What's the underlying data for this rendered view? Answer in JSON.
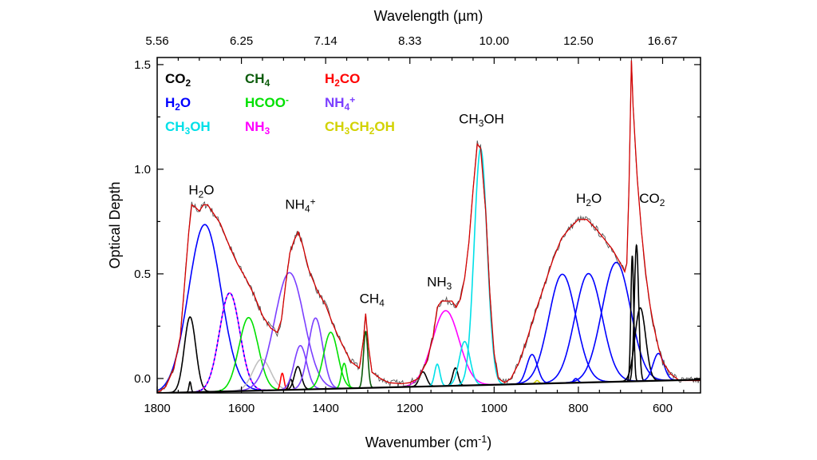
{
  "chart_data": {
    "type": "line",
    "xlabel": "Wavenumber (cm-1)",
    "xlabel_parts": [
      {
        "t": "Wavenumber (cm"
      },
      {
        "t": "-1",
        "sup": true
      },
      {
        "t": ")"
      }
    ],
    "ylabel": "Optical Depth",
    "top_xlabel": "Wavelength (µm)",
    "xlim": [
      1800,
      510
    ],
    "ylim": [
      -0.069,
      1.534
    ],
    "x_reversed": true,
    "grid": false,
    "legend_placement": "top-left",
    "x_ticks": [
      1800,
      1600,
      1400,
      1200,
      1000,
      800,
      600
    ],
    "x_tick_labels": [
      "1800",
      "1600",
      "1400",
      "1200",
      "1000",
      "800",
      "600"
    ],
    "top_ticks_wavenumber": [
      1800,
      1600,
      1400,
      1200,
      1000,
      800,
      600
    ],
    "top_tick_labels": [
      "5.56",
      "6.25",
      "7.14",
      "8.33",
      "10.00",
      "12.50",
      "16.67"
    ],
    "y_ticks": [
      0.0,
      0.5,
      1.0,
      1.5
    ],
    "y_tick_labels": [
      "0.0",
      "0.5",
      "1.0",
      "1.5"
    ],
    "colors": {
      "data": "#555555",
      "fit": "#d40000",
      "baseline": "#000000",
      "CO2": "#000000",
      "CH4": "#0b5c0b",
      "H2CO": "#ff0000",
      "H2O": "#0000ff",
      "HCOO-": "#00e000",
      "NH4+": "#7b3fff",
      "CH3OH": "#00e0e8",
      "NH3": "#ff00ff",
      "CH3CH2OH": "#d2d200",
      "unassigned": "#c0c0c0"
    },
    "legend": [
      {
        "species": "CO2",
        "parts": [
          {
            "t": "CO"
          },
          {
            "t": "2",
            "sub": true
          }
        ]
      },
      {
        "species": "H2O",
        "parts": [
          {
            "t": "H"
          },
          {
            "t": "2",
            "sub": true
          },
          {
            "t": "O"
          }
        ]
      },
      {
        "species": "CH3OH",
        "parts": [
          {
            "t": "CH"
          },
          {
            "t": "3",
            "sub": true
          },
          {
            "t": "OH"
          }
        ]
      },
      {
        "species": "CH4",
        "parts": [
          {
            "t": "CH"
          },
          {
            "t": "4",
            "sub": true
          }
        ]
      },
      {
        "species": "HCOO-",
        "parts": [
          {
            "t": "HCOO"
          },
          {
            "t": "-",
            "sup": true
          }
        ]
      },
      {
        "species": "NH3",
        "parts": [
          {
            "t": "NH"
          },
          {
            "t": "3",
            "sub": true
          }
        ]
      },
      {
        "species": "H2CO",
        "parts": [
          {
            "t": "H"
          },
          {
            "t": "2",
            "sub": true
          },
          {
            "t": "CO"
          }
        ]
      },
      {
        "species": "NH4+",
        "parts": [
          {
            "t": "NH"
          },
          {
            "t": "4",
            "sub": true
          },
          {
            "t": "+",
            "sup": true
          }
        ]
      },
      {
        "species": "CH3CH2OH",
        "parts": [
          {
            "t": "CH"
          },
          {
            "t": "3",
            "sub": true
          },
          {
            "t": "CH"
          },
          {
            "t": "2",
            "sub": true
          },
          {
            "t": "OH"
          }
        ]
      }
    ],
    "annotations": [
      {
        "x": 1695,
        "y": 0.88,
        "parts": [
          {
            "t": "H"
          },
          {
            "t": "2",
            "sub": true
          },
          {
            "t": "O"
          }
        ]
      },
      {
        "x": 1460,
        "y": 0.81,
        "parts": [
          {
            "t": "NH"
          },
          {
            "t": "4",
            "sub": true
          },
          {
            "t": "+",
            "sup": true
          }
        ]
      },
      {
        "x": 1290,
        "y": 0.36,
        "parts": [
          {
            "t": "CH"
          },
          {
            "t": "4",
            "sub": true
          }
        ]
      },
      {
        "x": 1130,
        "y": 0.44,
        "parts": [
          {
            "t": "NH"
          },
          {
            "t": "3",
            "sub": true
          }
        ]
      },
      {
        "x": 1030,
        "y": 1.22,
        "parts": [
          {
            "t": "CH"
          },
          {
            "t": "3",
            "sub": true
          },
          {
            "t": "OH"
          }
        ]
      },
      {
        "x": 775,
        "y": 0.84,
        "parts": [
          {
            "t": "H"
          },
          {
            "t": "2",
            "sub": true
          },
          {
            "t": "O"
          }
        ]
      },
      {
        "x": 625,
        "y": 0.84,
        "parts": [
          {
            "t": "CO"
          },
          {
            "t": "2",
            "sub": true
          }
        ]
      }
    ],
    "baseline": [
      [
        1800,
        -0.07
      ],
      [
        500,
        -0.005
      ]
    ],
    "spectrum": [
      [
        1800,
        -0.07
      ],
      [
        1780,
        -0.04
      ],
      [
        1760,
        0.05
      ],
      [
        1745,
        0.2
      ],
      [
        1735,
        0.45
      ],
      [
        1725,
        0.7
      ],
      [
        1718,
        0.83
      ],
      [
        1710,
        0.82
      ],
      [
        1700,
        0.8
      ],
      [
        1690,
        0.83
      ],
      [
        1680,
        0.83
      ],
      [
        1670,
        0.8
      ],
      [
        1650,
        0.74
      ],
      [
        1630,
        0.64
      ],
      [
        1610,
        0.55
      ],
      [
        1590,
        0.48
      ],
      [
        1570,
        0.4
      ],
      [
        1550,
        0.3
      ],
      [
        1530,
        0.24
      ],
      [
        1515,
        0.22
      ],
      [
        1505,
        0.28
      ],
      [
        1495,
        0.45
      ],
      [
        1485,
        0.6
      ],
      [
        1475,
        0.66
      ],
      [
        1465,
        0.7
      ],
      [
        1455,
        0.64
      ],
      [
        1440,
        0.52
      ],
      [
        1420,
        0.42
      ],
      [
        1400,
        0.35
      ],
      [
        1385,
        0.27
      ],
      [
        1370,
        0.2
      ],
      [
        1355,
        0.14
      ],
      [
        1340,
        0.08
      ],
      [
        1320,
        0.05
      ],
      [
        1310,
        0.19
      ],
      [
        1305,
        0.31
      ],
      [
        1298,
        0.15
      ],
      [
        1290,
        0.03
      ],
      [
        1270,
        0.0
      ],
      [
        1250,
        -0.02
      ],
      [
        1220,
        -0.025
      ],
      [
        1200,
        -0.02
      ],
      [
        1180,
        0.0
      ],
      [
        1160,
        0.08
      ],
      [
        1145,
        0.2
      ],
      [
        1135,
        0.34
      ],
      [
        1125,
        0.37
      ],
      [
        1110,
        0.37
      ],
      [
        1100,
        0.37
      ],
      [
        1090,
        0.34
      ],
      [
        1080,
        0.38
      ],
      [
        1070,
        0.48
      ],
      [
        1060,
        0.65
      ],
      [
        1050,
        0.9
      ],
      [
        1040,
        1.12
      ],
      [
        1032,
        1.1
      ],
      [
        1020,
        0.8
      ],
      [
        1010,
        0.4
      ],
      [
        1000,
        0.12
      ],
      [
        990,
        0.0
      ],
      [
        975,
        -0.02
      ],
      [
        960,
        0.0
      ],
      [
        940,
        0.08
      ],
      [
        920,
        0.2
      ],
      [
        900,
        0.33
      ],
      [
        880,
        0.45
      ],
      [
        860,
        0.57
      ],
      [
        840,
        0.67
      ],
      [
        820,
        0.72
      ],
      [
        800,
        0.76
      ],
      [
        780,
        0.76
      ],
      [
        760,
        0.72
      ],
      [
        740,
        0.67
      ],
      [
        720,
        0.62
      ],
      [
        700,
        0.55
      ],
      [
        690,
        0.51
      ],
      [
        685,
        0.55
      ],
      [
        680,
        0.9
      ],
      [
        674,
        1.52
      ],
      [
        670,
        1.3
      ],
      [
        666,
        1.16
      ],
      [
        660,
        0.95
      ],
      [
        650,
        0.7
      ],
      [
        640,
        0.5
      ],
      [
        630,
        0.35
      ],
      [
        620,
        0.24
      ],
      [
        610,
        0.15
      ],
      [
        600,
        0.08
      ],
      [
        580,
        0.02
      ],
      [
        560,
        -0.01
      ],
      [
        510,
        -0.01
      ]
    ],
    "components": [
      {
        "species": "CO2",
        "center": 1722,
        "amplitude": 0.36,
        "fwhm": 32
      },
      {
        "species": "CO2",
        "center": 1722,
        "amplitude": 0.05,
        "fwhm": 6
      },
      {
        "species": "H2O",
        "center": 1687,
        "amplitude": 0.8,
        "fwhm": 91
      },
      {
        "species": "NH3",
        "center": 1628,
        "amplitude": 0.47,
        "fwhm": 57,
        "dashed_overlay": "H2O"
      },
      {
        "species": "HCOO-",
        "center": 1583,
        "amplitude": 0.35,
        "fwhm": 54
      },
      {
        "species": "unassigned",
        "center": 1552,
        "amplitude": 0.15,
        "fwhm": 50
      },
      {
        "species": "H2CO",
        "center": 1503,
        "amplitude": 0.08,
        "fwhm": 10
      },
      {
        "species": "CO2",
        "center": 1483,
        "amplitude": 0.05,
        "fwhm": 10
      },
      {
        "species": "CO2",
        "center": 1466,
        "amplitude": 0.11,
        "fwhm": 20
      },
      {
        "species": "NH4+",
        "center": 1486,
        "amplitude": 0.56,
        "fwhm": 82
      },
      {
        "species": "NH4+",
        "center": 1460,
        "amplitude": 0.21,
        "fwhm": 35
      },
      {
        "species": "NH4+",
        "center": 1424,
        "amplitude": 0.34,
        "fwhm": 40
      },
      {
        "species": "HCOO-",
        "center": 1388,
        "amplitude": 0.27,
        "fwhm": 40
      },
      {
        "species": "HCOO-",
        "center": 1356,
        "amplitude": 0.12,
        "fwhm": 15
      },
      {
        "species": "CH4",
        "center": 1305,
        "amplitude": 0.27,
        "fwhm": 12
      },
      {
        "species": "CO2",
        "center": 1169,
        "amplitude": 0.07,
        "fwhm": 20
      },
      {
        "species": "CH3OH",
        "center": 1135,
        "amplitude": 0.105,
        "fwhm": 15
      },
      {
        "species": "NH3",
        "center": 1115,
        "amplitude": 0.36,
        "fwhm": 75
      },
      {
        "species": "CO2",
        "center": 1092,
        "amplitude": 0.085,
        "fwhm": 15
      },
      {
        "species": "CH3OH",
        "center": 1070,
        "amplitude": 0.21,
        "fwhm": 30
      },
      {
        "species": "CH3OH",
        "center": 1032,
        "amplitude": 1.13,
        "fwhm": 36
      },
      {
        "species": "H2O",
        "center": 910,
        "amplitude": 0.14,
        "fwhm": 30
      },
      {
        "species": "CH3CH2OH",
        "center": 898,
        "amplitude": 0.015,
        "fwhm": 10
      },
      {
        "species": "H2O",
        "center": 838,
        "amplitude": 0.52,
        "fwhm": 76
      },
      {
        "species": "H2O",
        "center": 806,
        "amplitude": 0.02,
        "fwhm": 12
      },
      {
        "species": "H2O",
        "center": 776,
        "amplitude": 0.52,
        "fwhm": 76
      },
      {
        "species": "H2O",
        "center": 710,
        "amplitude": 0.57,
        "fwhm": 80
      },
      {
        "species": "CO2",
        "center": 672,
        "amplitude": 0.6,
        "fwhm": 8
      },
      {
        "species": "CO2",
        "center": 662,
        "amplitude": 0.65,
        "fwhm": 12
      },
      {
        "species": "CO2",
        "center": 653,
        "amplitude": 0.35,
        "fwhm": 30
      },
      {
        "species": "H2O",
        "center": 610,
        "amplitude": 0.13,
        "fwhm": 30
      }
    ]
  }
}
